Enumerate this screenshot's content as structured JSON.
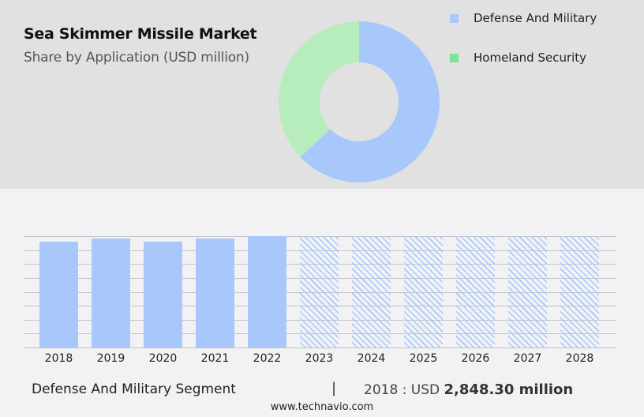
{
  "header": {
    "title": "Sea Skimmer Missile Market",
    "subtitle": "Share by Application (USD million)"
  },
  "legend": [
    {
      "label": "Defense And Military",
      "color": "#a8c8fc"
    },
    {
      "label": "Homeland Security",
      "color": "#7ee29a"
    }
  ],
  "footer": {
    "segment": "Defense And Military Segment",
    "separator": "|",
    "year_prefix": "2018 : USD",
    "value": "2,848.30 million",
    "site": "www.technavio.com"
  },
  "chart_data": [
    {
      "type": "pie",
      "title": "Share by Application (USD million)",
      "donut": true,
      "categories": [
        "Defense And Military",
        "Homeland Security"
      ],
      "values": [
        63,
        37
      ],
      "colors": [
        "#a8c8fc",
        "#b7ecbc"
      ],
      "legend_position": "right"
    },
    {
      "type": "bar",
      "title": "Defense And Military Segment",
      "categories": [
        "2018",
        "2019",
        "2020",
        "2021",
        "2022",
        "2023",
        "2024",
        "2025",
        "2026",
        "2027",
        "2028"
      ],
      "values": [
        2848.3,
        2930,
        2848.3,
        2930,
        3000,
        null,
        null,
        null,
        null,
        null,
        null
      ],
      "forecast": [
        false,
        false,
        false,
        false,
        false,
        true,
        true,
        true,
        true,
        true,
        true
      ],
      "ylim": [
        0,
        3000
      ],
      "grid": true,
      "xlabel": "",
      "ylabel": ""
    }
  ]
}
